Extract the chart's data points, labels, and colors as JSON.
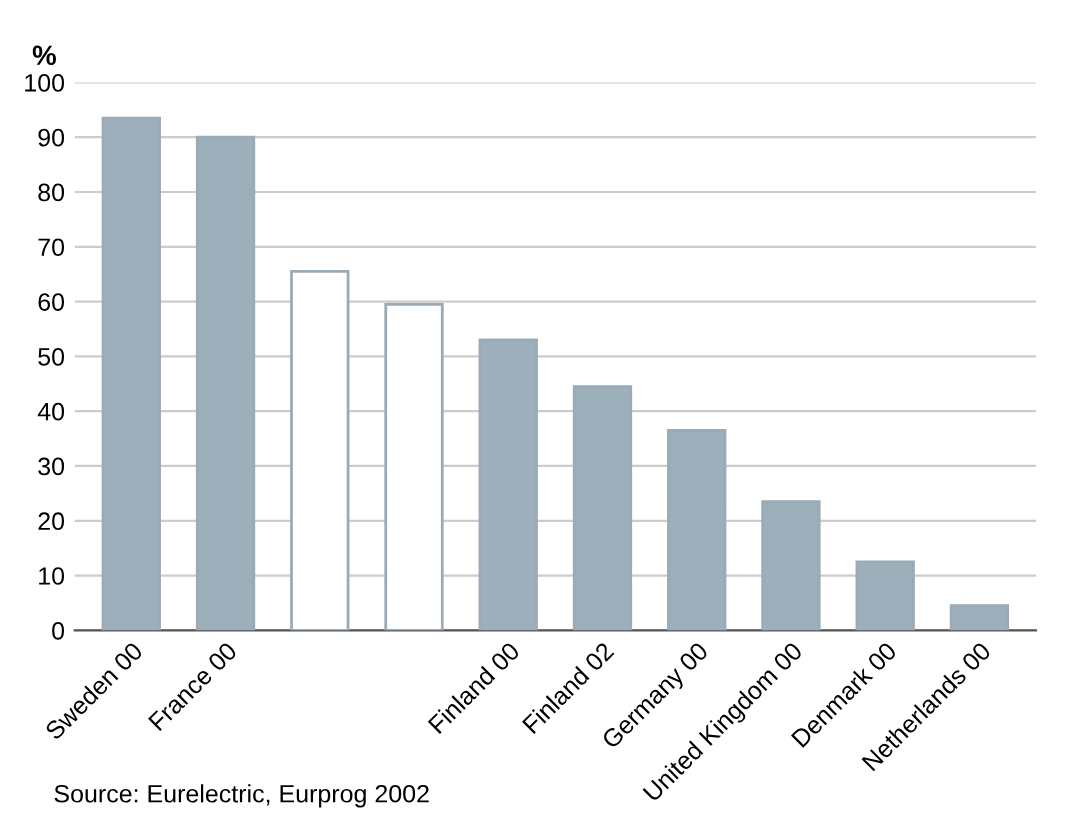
{
  "chart_data": {
    "type": "bar",
    "ylabel": "%",
    "categories": [
      "Sweden 00",
      "France 00",
      null,
      null,
      "Finland 00",
      "Finland 02",
      "Germany 00",
      "United Kingdom 00",
      "Denmark 00",
      "Netherlands 00"
    ],
    "values": [
      93.5,
      90,
      65.5,
      59.5,
      53,
      44.5,
      36.5,
      23.5,
      12.5,
      4.5
    ],
    "colors": [
      "#9cafbb",
      "#9cafbb",
      "#ffffff",
      "#ffffff",
      "#9cafbb",
      "#9cafbb",
      "#9cafbb",
      "#9cafbb",
      "#9cafbb",
      "#9cafbb"
    ],
    "ylim": [
      0,
      100
    ],
    "yticks": [
      0,
      10,
      20,
      30,
      40,
      50,
      60,
      70,
      80,
      90,
      100
    ],
    "grid": "y",
    "annotations": [
      "Source: Eurelectric, Eurprog 2002"
    ]
  }
}
